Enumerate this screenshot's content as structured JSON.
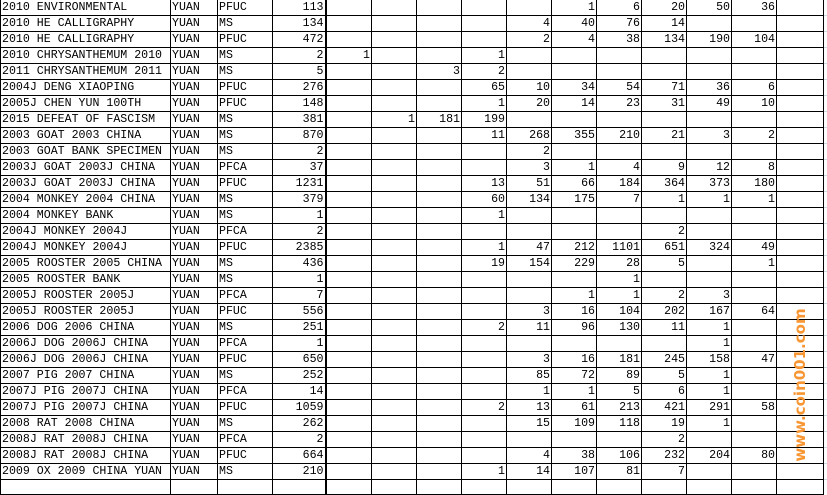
{
  "sheet": {
    "rows": [
      {
        "name": "2010 ENVIRONMENTAL",
        "currency": "YUAN",
        "grade": "PFUC",
        "total": "113",
        "values": [
          "",
          "",
          "",
          "",
          "",
          "1",
          "6",
          "20",
          "50",
          "36",
          ""
        ]
      },
      {
        "name": "2010 HE CALLIGRAPHY",
        "currency": "YUAN",
        "grade": "MS",
        "total": "134",
        "values": [
          "",
          "",
          "",
          "",
          "4",
          "40",
          "76",
          "14",
          "",
          "",
          ""
        ]
      },
      {
        "name": "2010 HE CALLIGRAPHY",
        "currency": "YUAN",
        "grade": "PFUC",
        "total": "472",
        "values": [
          "",
          "",
          "",
          "",
          "2",
          "4",
          "38",
          "134",
          "190",
          "104",
          ""
        ]
      },
      {
        "name": "2010 CHRYSANTHEMUM 2010",
        "currency": "YUAN",
        "grade": "MS",
        "total": "2",
        "values": [
          "1",
          "",
          "",
          "1",
          "",
          "",
          "",
          "",
          "",
          "",
          ""
        ]
      },
      {
        "name": "2011 CHRYSANTHEMUM 2011",
        "currency": "YUAN",
        "grade": "MS",
        "total": "5",
        "values": [
          "",
          "",
          "3",
          "2",
          "",
          "",
          "",
          "",
          "",
          "",
          ""
        ]
      },
      {
        "name": "2004J DENG XIAOPING",
        "currency": "YUAN",
        "grade": "PFUC",
        "total": "276",
        "values": [
          "",
          "",
          "",
          "65",
          "10",
          "34",
          "54",
          "71",
          "36",
          "6",
          ""
        ]
      },
      {
        "name": "2005J CHEN YUN 100TH",
        "currency": "YUAN",
        "grade": "PFUC",
        "total": "148",
        "values": [
          "",
          "",
          "",
          "1",
          "20",
          "14",
          "23",
          "31",
          "49",
          "10",
          ""
        ]
      },
      {
        "name": "2015 DEFEAT OF FASCISM",
        "currency": "YUAN",
        "grade": "MS",
        "total": "381",
        "values": [
          "",
          "1",
          "181",
          "199",
          "",
          "",
          "",
          "",
          "",
          "",
          ""
        ]
      },
      {
        "name": "2003 GOAT 2003 CHINA",
        "currency": "YUAN",
        "grade": "MS",
        "total": "870",
        "values": [
          "",
          "",
          "",
          "11",
          "268",
          "355",
          "210",
          "21",
          "3",
          "2",
          ""
        ]
      },
      {
        "name": "2003 GOAT BANK SPECIMEN",
        "currency": "YUAN",
        "grade": "MS",
        "total": "2",
        "values": [
          "",
          "",
          "",
          "",
          "2",
          "",
          "",
          "",
          "",
          "",
          ""
        ]
      },
      {
        "name": "2003J GOAT 2003J CHINA",
        "currency": "YUAN",
        "grade": "PFCA",
        "total": "37",
        "values": [
          "",
          "",
          "",
          "",
          "3",
          "1",
          "4",
          "9",
          "12",
          "8",
          ""
        ]
      },
      {
        "name": "2003J GOAT 2003J CHINA",
        "currency": "YUAN",
        "grade": "PFUC",
        "total": "1231",
        "values": [
          "",
          "",
          "",
          "13",
          "51",
          "66",
          "184",
          "364",
          "373",
          "180",
          ""
        ]
      },
      {
        "name": "2004 MONKEY 2004 CHINA",
        "currency": "YUAN",
        "grade": "MS",
        "total": "379",
        "values": [
          "",
          "",
          "",
          "60",
          "134",
          "175",
          "7",
          "1",
          "1",
          "1",
          ""
        ]
      },
      {
        "name": "2004 MONKEY BANK",
        "currency": "YUAN",
        "grade": "MS",
        "total": "1",
        "values": [
          "",
          "",
          "",
          "1",
          "",
          "",
          "",
          "",
          "",
          "",
          ""
        ]
      },
      {
        "name": "2004J MONKEY 2004J",
        "currency": "YUAN",
        "grade": "PFCA",
        "total": "2",
        "values": [
          "",
          "",
          "",
          "",
          "",
          "",
          "",
          "2",
          "",
          "",
          ""
        ]
      },
      {
        "name": "2004J MONKEY 2004J",
        "currency": "YUAN",
        "grade": "PFUC",
        "total": "2385",
        "values": [
          "",
          "",
          "",
          "1",
          "47",
          "212",
          "1101",
          "651",
          "324",
          "49",
          ""
        ]
      },
      {
        "name": "2005 ROOSTER 2005 CHINA",
        "currency": "YUAN",
        "grade": "MS",
        "total": "436",
        "values": [
          "",
          "",
          "",
          "19",
          "154",
          "229",
          "28",
          "5",
          "",
          "1",
          ""
        ]
      },
      {
        "name": "2005 ROOSTER BANK",
        "currency": "YUAN",
        "grade": "MS",
        "total": "1",
        "values": [
          "",
          "",
          "",
          "",
          "",
          "",
          "1",
          "",
          "",
          "",
          ""
        ]
      },
      {
        "name": "2005J ROOSTER 2005J",
        "currency": "YUAN",
        "grade": "PFCA",
        "total": "7",
        "values": [
          "",
          "",
          "",
          "",
          "",
          "1",
          "1",
          "2",
          "3",
          "",
          ""
        ]
      },
      {
        "name": "2005J ROOSTER 2005J",
        "currency": "YUAN",
        "grade": "PFUC",
        "total": "556",
        "values": [
          "",
          "",
          "",
          "",
          "3",
          "16",
          "104",
          "202",
          "167",
          "64",
          ""
        ]
      },
      {
        "name": "2006 DOG 2006 CHINA",
        "currency": "YUAN",
        "grade": "MS",
        "total": "251",
        "values": [
          "",
          "",
          "",
          "2",
          "11",
          "96",
          "130",
          "11",
          "1",
          "",
          ""
        ]
      },
      {
        "name": "2006J DOG 2006J CHINA",
        "currency": "YUAN",
        "grade": "PFCA",
        "total": "1",
        "values": [
          "",
          "",
          "",
          "",
          "",
          "",
          "",
          "",
          "1",
          "",
          ""
        ]
      },
      {
        "name": "2006J DOG 2006J CHINA",
        "currency": "YUAN",
        "grade": "PFUC",
        "total": "650",
        "values": [
          "",
          "",
          "",
          "",
          "3",
          "16",
          "181",
          "245",
          "158",
          "47",
          ""
        ]
      },
      {
        "name": "2007 PIG 2007 CHINA",
        "currency": "YUAN",
        "grade": "MS",
        "total": "252",
        "values": [
          "",
          "",
          "",
          "",
          "85",
          "72",
          "89",
          "5",
          "1",
          "",
          ""
        ]
      },
      {
        "name": "2007J PIG 2007J CHINA",
        "currency": "YUAN",
        "grade": "PFCA",
        "total": "14",
        "values": [
          "",
          "",
          "",
          "",
          "1",
          "1",
          "5",
          "6",
          "1",
          "",
          ""
        ]
      },
      {
        "name": "2007J PIG 2007J CHINA",
        "currency": "YUAN",
        "grade": "PFUC",
        "total": "1059",
        "values": [
          "",
          "",
          "",
          "2",
          "13",
          "61",
          "213",
          "421",
          "291",
          "58",
          ""
        ]
      },
      {
        "name": "2008 RAT 2008 CHINA",
        "currency": "YUAN",
        "grade": "MS",
        "total": "262",
        "values": [
          "",
          "",
          "",
          "",
          "15",
          "109",
          "118",
          "19",
          "1",
          "",
          ""
        ]
      },
      {
        "name": "2008J RAT 2008J CHINA",
        "currency": "YUAN",
        "grade": "PFCA",
        "total": "2",
        "values": [
          "",
          "",
          "",
          "",
          "",
          "",
          "",
          "2",
          "",
          "",
          ""
        ]
      },
      {
        "name": "2008J RAT 2008J CHINA",
        "currency": "YUAN",
        "grade": "PFUC",
        "total": "664",
        "values": [
          "",
          "",
          "",
          "",
          "4",
          "38",
          "106",
          "232",
          "204",
          "80",
          ""
        ]
      },
      {
        "name": "2009 OX 2009 CHINA YUAN",
        "currency": "YUAN",
        "grade": "MS",
        "total": "210",
        "values": [
          "",
          "",
          "",
          "1",
          "14",
          "107",
          "81",
          "7",
          "",
          "",
          ""
        ]
      },
      {
        "name": "",
        "currency": "",
        "grade": "",
        "total": "",
        "values": [
          "",
          "",
          "",
          "",
          "",
          "",
          "",
          "",
          "",
          "",
          ""
        ]
      }
    ]
  },
  "watermark": {
    "text": "www.coin001.com",
    "color": "#f79632"
  }
}
